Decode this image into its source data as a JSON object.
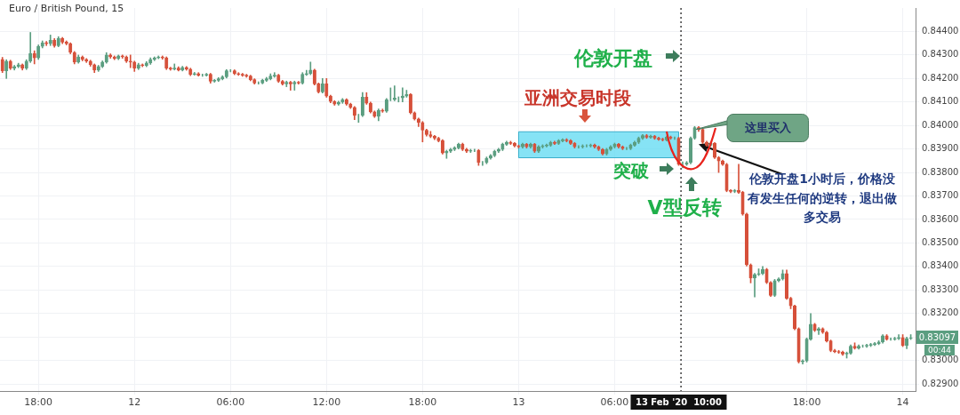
{
  "chart_data": {
    "type": "candlestick",
    "title": "Euro / British Pound, 15",
    "x": [
      "2020-02-11T15:45",
      "2020-02-11T16:00",
      "2020-02-11T16:15",
      "2020-02-11T16:30",
      "2020-02-11T16:45",
      "2020-02-11T17:00",
      "2020-02-11T17:15",
      "2020-02-11T17:30",
      "2020-02-11T17:45",
      "2020-02-11T18:00",
      "2020-02-11T18:15",
      "2020-02-11T18:30",
      "2020-02-11T18:45",
      "2020-02-11T19:00",
      "2020-02-11T19:15",
      "2020-02-11T19:30",
      "2020-02-11T19:45",
      "2020-02-11T20:00",
      "2020-02-11T20:15",
      "2020-02-11T20:30",
      "2020-02-11T20:45",
      "2020-02-11T21:00",
      "2020-02-11T21:15",
      "2020-02-11T21:30",
      "2020-02-11T21:45",
      "2020-02-11T22:00",
      "2020-02-11T22:15",
      "2020-02-11T22:30",
      "2020-02-11T22:45",
      "2020-02-11T23:00",
      "2020-02-11T23:15",
      "2020-02-11T23:30",
      "2020-02-11T23:45",
      "2020-02-12T00:00",
      "2020-02-12T00:15",
      "2020-02-12T00:30",
      "2020-02-12T00:45",
      "2020-02-12T01:00",
      "2020-02-12T01:15",
      "2020-02-12T01:30",
      "2020-02-12T01:45",
      "2020-02-12T02:00",
      "2020-02-12T02:15",
      "2020-02-12T02:30",
      "2020-02-12T02:45",
      "2020-02-12T03:00",
      "2020-02-12T03:15",
      "2020-02-12T03:30",
      "2020-02-12T03:45",
      "2020-02-12T04:00",
      "2020-02-12T04:15",
      "2020-02-12T04:30",
      "2020-02-12T04:45",
      "2020-02-12T05:00",
      "2020-02-12T05:15",
      "2020-02-12T05:30",
      "2020-02-12T05:45",
      "2020-02-12T06:00",
      "2020-02-12T06:15",
      "2020-02-12T06:30",
      "2020-02-12T06:45",
      "2020-02-12T07:00",
      "2020-02-12T07:15",
      "2020-02-12T07:30",
      "2020-02-12T07:45",
      "2020-02-12T08:00",
      "2020-02-12T08:15",
      "2020-02-12T08:30",
      "2020-02-12T08:45",
      "2020-02-12T09:00",
      "2020-02-12T09:15",
      "2020-02-12T09:30",
      "2020-02-12T09:45",
      "2020-02-12T10:00",
      "2020-02-12T10:15",
      "2020-02-12T10:30",
      "2020-02-12T10:45",
      "2020-02-12T11:00",
      "2020-02-12T11:15",
      "2020-02-12T11:30",
      "2020-02-12T11:45",
      "2020-02-12T12:00",
      "2020-02-12T12:15",
      "2020-02-12T12:30",
      "2020-02-12T12:45",
      "2020-02-12T13:00",
      "2020-02-12T13:15",
      "2020-02-12T13:30",
      "2020-02-12T13:45",
      "2020-02-12T14:00",
      "2020-02-12T14:15",
      "2020-02-12T14:30",
      "2020-02-12T14:45",
      "2020-02-12T15:00",
      "2020-02-12T15:15",
      "2020-02-12T15:30",
      "2020-02-12T15:45",
      "2020-02-12T16:00",
      "2020-02-12T16:15",
      "2020-02-12T16:30",
      "2020-02-12T16:45",
      "2020-02-12T17:00",
      "2020-02-12T17:15",
      "2020-02-12T17:30",
      "2020-02-12T17:45",
      "2020-02-12T18:00",
      "2020-02-12T18:15",
      "2020-02-12T18:30",
      "2020-02-12T18:45",
      "2020-02-12T19:00",
      "2020-02-12T19:15",
      "2020-02-12T19:30",
      "2020-02-12T19:45",
      "2020-02-12T20:00",
      "2020-02-12T20:15",
      "2020-02-12T20:30",
      "2020-02-12T20:45",
      "2020-02-12T21:00",
      "2020-02-12T21:15",
      "2020-02-12T21:30",
      "2020-02-12T21:45",
      "2020-02-12T22:00",
      "2020-02-12T22:15",
      "2020-02-12T22:30",
      "2020-02-12T22:45",
      "2020-02-12T23:00",
      "2020-02-12T23:15",
      "2020-02-12T23:30",
      "2020-02-12T23:45",
      "2020-02-13T00:00",
      "2020-02-13T00:15",
      "2020-02-13T00:30",
      "2020-02-13T00:45",
      "2020-02-13T01:00",
      "2020-02-13T01:15",
      "2020-02-13T01:30",
      "2020-02-13T01:45",
      "2020-02-13T02:00",
      "2020-02-13T02:15",
      "2020-02-13T02:30",
      "2020-02-13T02:45",
      "2020-02-13T03:00",
      "2020-02-13T03:15",
      "2020-02-13T03:30",
      "2020-02-13T03:45",
      "2020-02-13T04:00",
      "2020-02-13T04:15",
      "2020-02-13T04:30",
      "2020-02-13T04:45",
      "2020-02-13T05:00",
      "2020-02-13T05:15",
      "2020-02-13T05:30",
      "2020-02-13T05:45",
      "2020-02-13T06:00",
      "2020-02-13T06:15",
      "2020-02-13T06:30",
      "2020-02-13T06:45",
      "2020-02-13T07:00",
      "2020-02-13T07:15",
      "2020-02-13T07:30",
      "2020-02-13T07:45",
      "2020-02-13T08:00",
      "2020-02-13T08:15",
      "2020-02-13T08:30",
      "2020-02-13T08:45",
      "2020-02-13T09:00",
      "2020-02-13T09:15",
      "2020-02-13T09:30",
      "2020-02-13T09:45",
      "2020-02-13T10:00",
      "2020-02-13T10:15",
      "2020-02-13T10:30",
      "2020-02-13T10:45",
      "2020-02-13T11:00",
      "2020-02-13T11:15",
      "2020-02-13T11:30",
      "2020-02-13T11:45",
      "2020-02-13T12:00",
      "2020-02-13T12:15",
      "2020-02-13T12:30",
      "2020-02-13T12:45",
      "2020-02-13T13:00",
      "2020-02-13T13:15",
      "2020-02-13T13:30",
      "2020-02-13T13:45",
      "2020-02-13T14:00",
      "2020-02-13T14:15",
      "2020-02-13T14:30",
      "2020-02-13T14:45",
      "2020-02-13T15:00",
      "2020-02-13T15:15",
      "2020-02-13T15:30",
      "2020-02-13T15:45",
      "2020-02-13T16:00",
      "2020-02-13T16:15",
      "2020-02-13T16:30",
      "2020-02-13T16:45",
      "2020-02-13T17:00",
      "2020-02-13T17:15",
      "2020-02-13T17:30",
      "2020-02-13T17:45",
      "2020-02-13T18:00",
      "2020-02-13T18:15",
      "2020-02-13T18:30",
      "2020-02-13T18:45",
      "2020-02-13T19:00",
      "2020-02-13T19:15",
      "2020-02-13T19:30",
      "2020-02-13T19:45",
      "2020-02-13T20:00",
      "2020-02-13T20:15",
      "2020-02-13T20:30",
      "2020-02-13T20:45",
      "2020-02-13T21:00",
      "2020-02-13T21:15",
      "2020-02-13T21:30",
      "2020-02-13T21:45",
      "2020-02-13T22:00",
      "2020-02-13T22:15",
      "2020-02-13T22:30",
      "2020-02-13T22:45",
      "2020-02-13T23:00",
      "2020-02-13T23:15",
      "2020-02-13T23:30",
      "2020-02-13T23:45",
      "2020-02-14T00:00",
      "2020-02-14T00:15",
      "2020-02-14T00:30"
    ],
    "ohlc": [
      [
        0.84281,
        0.8429,
        0.84225,
        0.84233
      ],
      [
        0.84233,
        0.8428,
        0.842,
        0.84274
      ],
      [
        0.84274,
        0.84278,
        0.84238,
        0.84244
      ],
      [
        0.84244,
        0.84256,
        0.84236,
        0.84251
      ],
      [
        0.84251,
        0.84265,
        0.84246,
        0.84259
      ],
      [
        0.84259,
        0.84262,
        0.84236,
        0.84244
      ],
      [
        0.84244,
        0.8428,
        0.84238,
        0.84274
      ],
      [
        0.84274,
        0.84396,
        0.84268,
        0.84307
      ],
      [
        0.84307,
        0.84318,
        0.84262,
        0.84288
      ],
      [
        0.84288,
        0.84343,
        0.84281,
        0.84337
      ],
      [
        0.84337,
        0.8436,
        0.8433,
        0.84352
      ],
      [
        0.84352,
        0.84358,
        0.8434,
        0.84348
      ],
      [
        0.84348,
        0.84385,
        0.8434,
        0.84363
      ],
      [
        0.84363,
        0.8437,
        0.84333,
        0.8434
      ],
      [
        0.8434,
        0.84378,
        0.84335,
        0.8437
      ],
      [
        0.8437,
        0.84375,
        0.84348,
        0.84355
      ],
      [
        0.84355,
        0.8436,
        0.84343,
        0.84348
      ],
      [
        0.84348,
        0.84352,
        0.84305,
        0.84311
      ],
      [
        0.84311,
        0.84315,
        0.84262,
        0.8427
      ],
      [
        0.8427,
        0.843,
        0.84265,
        0.84292
      ],
      [
        0.84292,
        0.84296,
        0.84275,
        0.84281
      ],
      [
        0.84281,
        0.84285,
        0.84268,
        0.84274
      ],
      [
        0.84274,
        0.84278,
        0.84252,
        0.84259
      ],
      [
        0.84259,
        0.84262,
        0.84225,
        0.84236
      ],
      [
        0.84236,
        0.84256,
        0.8423,
        0.84251
      ],
      [
        0.84251,
        0.84275,
        0.84246,
        0.8427
      ],
      [
        0.8427,
        0.8431,
        0.84265,
        0.843
      ],
      [
        0.843,
        0.84305,
        0.84286,
        0.84292
      ],
      [
        0.84292,
        0.84296,
        0.8428,
        0.84285
      ],
      [
        0.84285,
        0.843,
        0.8428,
        0.84296
      ],
      [
        0.84296,
        0.843,
        0.84286,
        0.84292
      ],
      [
        0.84292,
        0.84296,
        0.84268,
        0.84274
      ],
      [
        0.84274,
        0.843,
        0.84246,
        0.8427
      ],
      [
        0.8427,
        0.84274,
        0.8423,
        0.84244
      ],
      [
        0.84244,
        0.84265,
        0.84238,
        0.84259
      ],
      [
        0.84259,
        0.84262,
        0.8425,
        0.84255
      ],
      [
        0.84255,
        0.84272,
        0.8425,
        0.84266
      ],
      [
        0.84266,
        0.84288,
        0.8426,
        0.84281
      ],
      [
        0.84281,
        0.84292,
        0.84276,
        0.84288
      ],
      [
        0.84288,
        0.84296,
        0.84284,
        0.84292
      ],
      [
        0.84292,
        0.84296,
        0.84282,
        0.84288
      ],
      [
        0.84288,
        0.84292,
        0.84238,
        0.84244
      ],
      [
        0.84244,
        0.84248,
        0.84235,
        0.8424
      ],
      [
        0.8424,
        0.84262,
        0.84236,
        0.84244
      ],
      [
        0.84244,
        0.8425,
        0.84232,
        0.84236
      ],
      [
        0.84236,
        0.84252,
        0.84232,
        0.84247
      ],
      [
        0.84247,
        0.84251,
        0.84235,
        0.8424
      ],
      [
        0.8424,
        0.84244,
        0.84212,
        0.84218
      ],
      [
        0.84218,
        0.84226,
        0.84214,
        0.84221
      ],
      [
        0.84221,
        0.84225,
        0.8421,
        0.84214
      ],
      [
        0.84214,
        0.84219,
        0.84209,
        0.84214
      ],
      [
        0.84214,
        0.84222,
        0.8421,
        0.84218
      ],
      [
        0.84218,
        0.84222,
        0.8418,
        0.84188
      ],
      [
        0.84188,
        0.84196,
        0.84184,
        0.84192
      ],
      [
        0.84192,
        0.84204,
        0.84187,
        0.84199
      ],
      [
        0.84199,
        0.84212,
        0.84194,
        0.84207
      ],
      [
        0.84207,
        0.84238,
        0.84202,
        0.84233
      ],
      [
        0.84233,
        0.84238,
        0.84228,
        0.84233
      ],
      [
        0.84233,
        0.84237,
        0.84216,
        0.84221
      ],
      [
        0.84221,
        0.84225,
        0.84213,
        0.84218
      ],
      [
        0.84218,
        0.84222,
        0.84209,
        0.84214
      ],
      [
        0.84214,
        0.84218,
        0.84205,
        0.8421
      ],
      [
        0.8421,
        0.84214,
        0.8419,
        0.84195
      ],
      [
        0.84195,
        0.84199,
        0.84176,
        0.84181
      ],
      [
        0.84181,
        0.84186,
        0.84176,
        0.84181
      ],
      [
        0.84181,
        0.84197,
        0.84177,
        0.84192
      ],
      [
        0.84192,
        0.84205,
        0.84187,
        0.84199
      ],
      [
        0.84199,
        0.8422,
        0.84194,
        0.8421
      ],
      [
        0.8421,
        0.84225,
        0.84205,
        0.84214
      ],
      [
        0.84214,
        0.84218,
        0.84183,
        0.84188
      ],
      [
        0.84188,
        0.84192,
        0.84172,
        0.84177
      ],
      [
        0.84177,
        0.84189,
        0.84165,
        0.84184
      ],
      [
        0.84184,
        0.84188,
        0.8415,
        0.84177
      ],
      [
        0.84177,
        0.84189,
        0.8415,
        0.84184
      ],
      [
        0.84184,
        0.84188,
        0.84176,
        0.84181
      ],
      [
        0.84181,
        0.84225,
        0.84176,
        0.84218
      ],
      [
        0.84218,
        0.84235,
        0.84213,
        0.84221
      ],
      [
        0.84221,
        0.8427,
        0.84216,
        0.84236
      ],
      [
        0.84236,
        0.8424,
        0.84172,
        0.84177
      ],
      [
        0.84177,
        0.84181,
        0.84138,
        0.84143
      ],
      [
        0.84143,
        0.842,
        0.84138,
        0.84177
      ],
      [
        0.84177,
        0.842,
        0.8412,
        0.84125
      ],
      [
        0.84125,
        0.84129,
        0.84097,
        0.84102
      ],
      [
        0.84102,
        0.84106,
        0.84086,
        0.84091
      ],
      [
        0.84091,
        0.84104,
        0.84086,
        0.84099
      ],
      [
        0.84099,
        0.84115,
        0.84094,
        0.8411
      ],
      [
        0.8411,
        0.84114,
        0.84086,
        0.84091
      ],
      [
        0.84091,
        0.84095,
        0.84072,
        0.84077
      ],
      [
        0.84077,
        0.84081,
        0.84025,
        0.84043
      ],
      [
        0.84043,
        0.84048,
        0.84013,
        0.84043
      ],
      [
        0.84043,
        0.8414,
        0.84038,
        0.84121
      ],
      [
        0.84121,
        0.8414,
        0.8409,
        0.84095
      ],
      [
        0.84095,
        0.841,
        0.84053,
        0.84058
      ],
      [
        0.84058,
        0.84062,
        0.84034,
        0.84039
      ],
      [
        0.84039,
        0.8407,
        0.8402,
        0.84065
      ],
      [
        0.84065,
        0.8407,
        0.84056,
        0.84061
      ],
      [
        0.84061,
        0.84115,
        0.84056,
        0.8411
      ],
      [
        0.8411,
        0.8416,
        0.84105,
        0.8411
      ],
      [
        0.8411,
        0.84169,
        0.84105,
        0.84117
      ],
      [
        0.84117,
        0.84122,
        0.841,
        0.84117
      ],
      [
        0.84117,
        0.8416,
        0.841,
        0.84125
      ],
      [
        0.84125,
        0.8415,
        0.8412,
        0.84132
      ],
      [
        0.84132,
        0.84136,
        0.84049,
        0.84054
      ],
      [
        0.84054,
        0.84058,
        0.84023,
        0.84028
      ],
      [
        0.84028,
        0.84032,
        0.83995,
        0.84013
      ],
      [
        0.84013,
        0.84017,
        0.8393,
        0.8398
      ],
      [
        0.8398,
        0.83984,
        0.83955,
        0.83961
      ],
      [
        0.83961,
        0.83975,
        0.83948,
        0.83954
      ],
      [
        0.83954,
        0.83958,
        0.8394,
        0.83946
      ],
      [
        0.83946,
        0.8395,
        0.8393,
        0.83935
      ],
      [
        0.83935,
        0.8394,
        0.83878,
        0.83883
      ],
      [
        0.83883,
        0.83895,
        0.8386,
        0.8389
      ],
      [
        0.8389,
        0.83903,
        0.83885,
        0.83898
      ],
      [
        0.83898,
        0.8391,
        0.83893,
        0.83905
      ],
      [
        0.83905,
        0.83925,
        0.839,
        0.8392
      ],
      [
        0.8392,
        0.83925,
        0.83893,
        0.83898
      ],
      [
        0.83898,
        0.83903,
        0.83885,
        0.8389
      ],
      [
        0.8389,
        0.83899,
        0.83885,
        0.83894
      ],
      [
        0.83894,
        0.83899,
        0.83889,
        0.83894
      ],
      [
        0.83894,
        0.83898,
        0.8383,
        0.83842
      ],
      [
        0.83842,
        0.83847,
        0.8383,
        0.83842
      ],
      [
        0.83842,
        0.83866,
        0.83837,
        0.83861
      ],
      [
        0.83861,
        0.83877,
        0.83856,
        0.83872
      ],
      [
        0.83872,
        0.83895,
        0.83867,
        0.8389
      ],
      [
        0.8389,
        0.83903,
        0.83885,
        0.83898
      ],
      [
        0.83898,
        0.83925,
        0.83893,
        0.8392
      ],
      [
        0.8392,
        0.83933,
        0.83915,
        0.83928
      ],
      [
        0.83928,
        0.83933,
        0.83919,
        0.83924
      ],
      [
        0.83924,
        0.83928,
        0.83908,
        0.83913
      ],
      [
        0.83913,
        0.83917,
        0.83904,
        0.83909
      ],
      [
        0.83909,
        0.83925,
        0.83904,
        0.8392
      ],
      [
        0.8392,
        0.83924,
        0.83904,
        0.83909
      ],
      [
        0.83909,
        0.83925,
        0.83904,
        0.8392
      ],
      [
        0.8392,
        0.83924,
        0.83885,
        0.8389
      ],
      [
        0.8389,
        0.83914,
        0.83885,
        0.83909
      ],
      [
        0.83909,
        0.83918,
        0.83904,
        0.83913
      ],
      [
        0.83913,
        0.83921,
        0.83908,
        0.83916
      ],
      [
        0.83916,
        0.83933,
        0.83911,
        0.83928
      ],
      [
        0.83928,
        0.83933,
        0.83919,
        0.83924
      ],
      [
        0.83924,
        0.8394,
        0.83919,
        0.83935
      ],
      [
        0.83935,
        0.83944,
        0.8393,
        0.83939
      ],
      [
        0.83939,
        0.83944,
        0.8393,
        0.83935
      ],
      [
        0.83935,
        0.8394,
        0.83919,
        0.83924
      ],
      [
        0.83924,
        0.83928,
        0.83904,
        0.83909
      ],
      [
        0.83909,
        0.83914,
        0.83904,
        0.83909
      ],
      [
        0.83909,
        0.83918,
        0.83904,
        0.83913
      ],
      [
        0.83913,
        0.83918,
        0.83908,
        0.83913
      ],
      [
        0.83913,
        0.83921,
        0.83908,
        0.83916
      ],
      [
        0.83916,
        0.83921,
        0.83904,
        0.83909
      ],
      [
        0.83909,
        0.83913,
        0.83893,
        0.83898
      ],
      [
        0.83898,
        0.83902,
        0.83874,
        0.83879
      ],
      [
        0.83879,
        0.83903,
        0.83874,
        0.83898
      ],
      [
        0.83898,
        0.83914,
        0.83893,
        0.83909
      ],
      [
        0.83909,
        0.83925,
        0.83904,
        0.8392
      ],
      [
        0.8392,
        0.83924,
        0.83904,
        0.83909
      ],
      [
        0.83909,
        0.83913,
        0.83897,
        0.83902
      ],
      [
        0.83902,
        0.83907,
        0.83897,
        0.83902
      ],
      [
        0.83902,
        0.83921,
        0.83897,
        0.83916
      ],
      [
        0.83916,
        0.83933,
        0.83911,
        0.83928
      ],
      [
        0.83928,
        0.83951,
        0.83923,
        0.83946
      ],
      [
        0.83946,
        0.83962,
        0.83941,
        0.83957
      ],
      [
        0.83957,
        0.83962,
        0.83945,
        0.8395
      ],
      [
        0.8395,
        0.83959,
        0.83945,
        0.83954
      ],
      [
        0.83954,
        0.83958,
        0.83941,
        0.83946
      ],
      [
        0.83946,
        0.8395,
        0.83937,
        0.83942
      ],
      [
        0.83942,
        0.83946,
        0.83934,
        0.83939
      ],
      [
        0.83939,
        0.83955,
        0.83934,
        0.8395
      ],
      [
        0.8395,
        0.83955,
        0.83941,
        0.83946
      ],
      [
        0.83946,
        0.83951,
        0.83941,
        0.83946
      ],
      [
        0.83946,
        0.8395,
        0.8383,
        0.83835
      ],
      [
        0.83835,
        0.83845,
        0.8382,
        0.83835
      ],
      [
        0.83835,
        0.83847,
        0.8383,
        0.83842
      ],
      [
        0.83842,
        0.83951,
        0.83837,
        0.83946
      ],
      [
        0.83946,
        0.83996,
        0.83941,
        0.83991
      ],
      [
        0.83991,
        0.83996,
        0.83975,
        0.83983
      ],
      [
        0.83983,
        0.83988,
        0.83923,
        0.83928
      ],
      [
        0.83928,
        0.83933,
        0.83911,
        0.83916
      ],
      [
        0.83916,
        0.83929,
        0.83911,
        0.83924
      ],
      [
        0.83924,
        0.83928,
        0.83859,
        0.83864
      ],
      [
        0.83864,
        0.83868,
        0.838,
        0.83849
      ],
      [
        0.83849,
        0.83853,
        0.8383,
        0.83835
      ],
      [
        0.83835,
        0.83839,
        0.83718,
        0.83723
      ],
      [
        0.83723,
        0.83727,
        0.83714,
        0.83719
      ],
      [
        0.83719,
        0.83728,
        0.83714,
        0.83723
      ],
      [
        0.83723,
        0.83835,
        0.83711,
        0.83716
      ],
      [
        0.83716,
        0.8372,
        0.83618,
        0.83623
      ],
      [
        0.83623,
        0.83627,
        0.83402,
        0.83407
      ],
      [
        0.83407,
        0.83411,
        0.8333,
        0.83351
      ],
      [
        0.83351,
        0.83371,
        0.8327,
        0.83366
      ],
      [
        0.83366,
        0.8339,
        0.83361,
        0.8337
      ],
      [
        0.8337,
        0.834,
        0.83365,
        0.83388
      ],
      [
        0.83388,
        0.83392,
        0.83327,
        0.83332
      ],
      [
        0.83332,
        0.83336,
        0.83272,
        0.83277
      ],
      [
        0.83277,
        0.83345,
        0.83272,
        0.8334
      ],
      [
        0.8334,
        0.83352,
        0.83335,
        0.83347
      ],
      [
        0.83347,
        0.83385,
        0.83342,
        0.8337
      ],
      [
        0.8337,
        0.83385,
        0.8326,
        0.83265
      ],
      [
        0.83265,
        0.83269,
        0.8322,
        0.83232
      ],
      [
        0.83232,
        0.83236,
        0.8313,
        0.83135
      ],
      [
        0.83135,
        0.83139,
        0.82989,
        0.82994
      ],
      [
        0.82994,
        0.83003,
        0.82985,
        0.82998
      ],
      [
        0.82998,
        0.83096,
        0.82993,
        0.83091
      ],
      [
        0.83091,
        0.832,
        0.83086,
        0.83154
      ],
      [
        0.83154,
        0.83158,
        0.83123,
        0.83128
      ],
      [
        0.83128,
        0.8314,
        0.8311,
        0.83135
      ],
      [
        0.83135,
        0.83139,
        0.83115,
        0.8312
      ],
      [
        0.8312,
        0.83124,
        0.83078,
        0.83083
      ],
      [
        0.83083,
        0.83087,
        0.83037,
        0.83042
      ],
      [
        0.83042,
        0.83047,
        0.83033,
        0.83038
      ],
      [
        0.83038,
        0.83043,
        0.8303,
        0.83035
      ],
      [
        0.83035,
        0.8304,
        0.83022,
        0.83027
      ],
      [
        0.83027,
        0.83036,
        0.8301,
        0.83031
      ],
      [
        0.83031,
        0.83066,
        0.83026,
        0.83061
      ],
      [
        0.83061,
        0.83075,
        0.83048,
        0.83053
      ],
      [
        0.83053,
        0.83066,
        0.83048,
        0.83061
      ],
      [
        0.83061,
        0.83066,
        0.83056,
        0.83061
      ],
      [
        0.83061,
        0.83069,
        0.83056,
        0.83064
      ],
      [
        0.83064,
        0.83073,
        0.83059,
        0.83068
      ],
      [
        0.83068,
        0.83077,
        0.83063,
        0.83072
      ],
      [
        0.83072,
        0.83084,
        0.83067,
        0.83079
      ],
      [
        0.83079,
        0.8311,
        0.83074,
        0.83105
      ],
      [
        0.83105,
        0.8311,
        0.83086,
        0.83091
      ],
      [
        0.83091,
        0.83096,
        0.83086,
        0.83091
      ],
      [
        0.83091,
        0.83099,
        0.83086,
        0.83094
      ],
      [
        0.83094,
        0.8311,
        0.83089,
        0.83098
      ],
      [
        0.83098,
        0.8311,
        0.83059,
        0.83064
      ],
      [
        0.83064,
        0.83099,
        0.8305,
        0.83094
      ],
      [
        0.83094,
        0.8311,
        0.83089,
        0.83097
      ]
    ],
    "xlim": [
      "2020-02-11T15:36",
      "2020-02-14T00:48"
    ],
    "xticks": [
      {
        "value": "2020-02-11T18:00",
        "label": "18:00"
      },
      {
        "value": "2020-02-12T00:00",
        "label": "12"
      },
      {
        "value": "2020-02-12T06:00",
        "label": "06:00"
      },
      {
        "value": "2020-02-12T12:00",
        "label": "12:00"
      },
      {
        "value": "2020-02-12T18:00",
        "label": "18:00"
      },
      {
        "value": "2020-02-13T00:00",
        "label": "13"
      },
      {
        "value": "2020-02-13T06:00",
        "label": "06:00"
      },
      {
        "value": "2020-02-13T18:00",
        "label": "18:00"
      },
      {
        "value": "2020-02-14T00:00",
        "label": "14"
      }
    ],
    "ylim": [
      0.8287,
      0.845
    ],
    "yticks": [
      {
        "value": 0.829,
        "label": "0.82900"
      },
      {
        "value": 0.83,
        "label": "0.83000"
      },
      {
        "value": 0.831,
        "label": null
      },
      {
        "value": 0.832,
        "label": "0.83200"
      },
      {
        "value": 0.833,
        "label": "0.83300"
      },
      {
        "value": 0.834,
        "label": "0.83400"
      },
      {
        "value": 0.835,
        "label": "0.83500"
      },
      {
        "value": 0.836,
        "label": "0.83600"
      },
      {
        "value": 0.837,
        "label": "0.83700"
      },
      {
        "value": 0.838,
        "label": "0.83800"
      },
      {
        "value": 0.839,
        "label": "0.83900"
      },
      {
        "value": 0.84,
        "label": "0.84000"
      },
      {
        "value": 0.841,
        "label": "0.84100"
      },
      {
        "value": 0.842,
        "label": "0.84200"
      },
      {
        "value": 0.843,
        "label": "0.84300"
      },
      {
        "value": 0.844,
        "label": "0.84400"
      }
    ],
    "grid": true,
    "ref_lines": [
      {
        "axis": "x",
        "value": "2020-02-13T10:00",
        "label": "13 Feb '20  10:00",
        "line_style": "dotted"
      }
    ],
    "bands": [
      {
        "axis": "x",
        "from": "2020-02-13T00:00",
        "to": "2020-02-13T10:00",
        "label": "亚洲交易时段",
        "color": "#5dd9f2"
      }
    ],
    "annotations": [
      "伦敦开盘",
      "突破",
      "V型反转",
      "这里买入",
      {
        "text": "伦敦开盘1小时后，价格没有发生任何的逆转，退出做多交易",
        "x": "2020-02-13T11:15",
        "y": 0.8392
      },
      "0.83097",
      "00:44"
    ]
  }
}
